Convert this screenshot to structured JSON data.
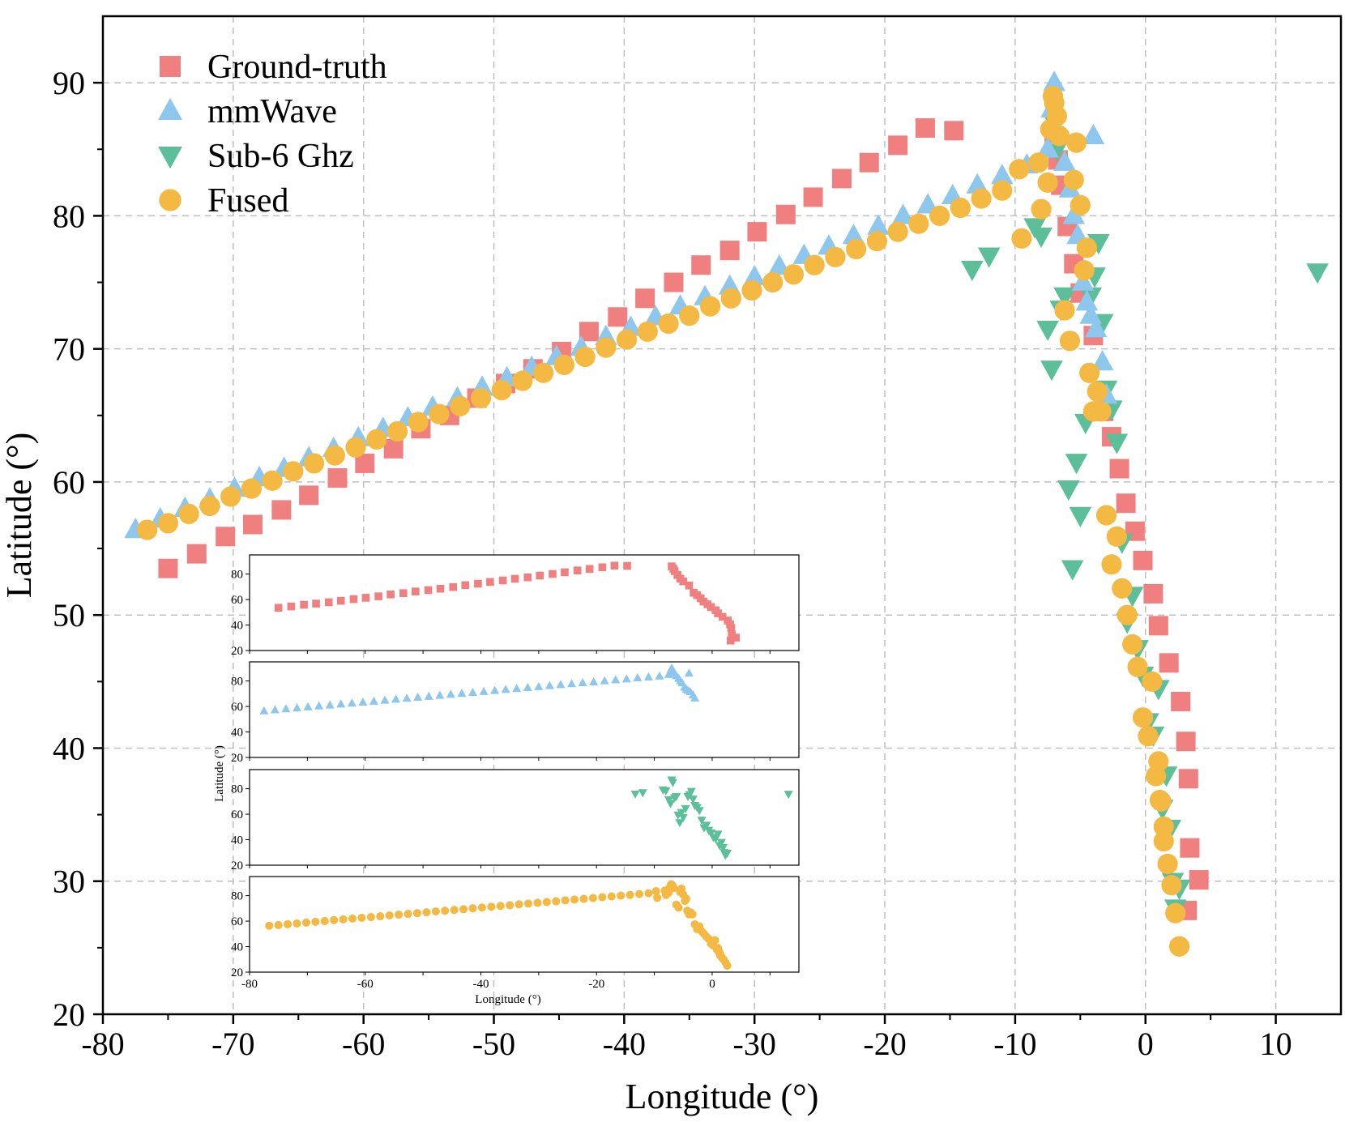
{
  "chart_data": {
    "type": "scatter",
    "title": "",
    "xlabel": "Longitude (°)",
    "ylabel": "Latitude (°)",
    "xlim": [
      -80,
      15
    ],
    "ylim": [
      20,
      95
    ],
    "xticks": [
      -80,
      -70,
      -60,
      -50,
      -40,
      -30,
      -20,
      -10,
      0,
      10
    ],
    "yticks": [
      20,
      30,
      40,
      50,
      60,
      70,
      80,
      90
    ],
    "grid": true,
    "legend_position": "top-left",
    "series": [
      {
        "name": "Ground-truth",
        "marker": "square",
        "color": "#f08080",
        "x": [
          -75.0,
          -72.8,
          -70.6,
          -68.5,
          -66.3,
          -64.2,
          -62.0,
          -59.9,
          -57.7,
          -55.6,
          -53.4,
          -51.3,
          -49.1,
          -47.0,
          -44.8,
          -42.7,
          -40.5,
          -38.4,
          -36.2,
          -34.1,
          -31.9,
          -29.8,
          -27.6,
          -25.5,
          -23.3,
          -21.2,
          -19.0,
          -16.9,
          -14.7,
          -7.0,
          -6.7,
          -6.5,
          -6.0,
          -5.5,
          -5.0,
          -4.0,
          -3.2,
          -2.6,
          -2.0,
          -1.5,
          -0.8,
          -0.2,
          0.6,
          1.0,
          1.8,
          2.7,
          3.1,
          3.3,
          3.4,
          4.1
        ],
        "y": [
          53.5,
          54.6,
          55.9,
          56.8,
          57.9,
          59.0,
          60.3,
          61.4,
          62.5,
          64.0,
          65.0,
          66.3,
          67.4,
          68.5,
          69.8,
          71.3,
          72.4,
          73.8,
          75.0,
          76.3,
          77.4,
          78.8,
          80.1,
          81.4,
          82.8,
          84.0,
          85.3,
          86.6,
          86.4,
          86.0,
          84.2,
          82.3,
          79.2,
          76.4,
          74.2,
          71.0,
          65.3,
          63.4,
          61.0,
          58.4,
          56.3,
          54.1,
          51.6,
          49.2,
          46.4,
          43.5,
          40.5,
          37.7,
          32.5,
          30.1
        ],
        "x_extra": [
          3.2
        ],
        "y_extra": [
          27.8
        ]
      },
      {
        "name": "mmWave",
        "marker": "triangle-up",
        "color": "#8ec7ee",
        "x": [
          -77.5,
          -75.6,
          -73.7,
          -71.8,
          -69.9,
          -68.0,
          -66.1,
          -64.2,
          -62.3,
          -60.4,
          -58.5,
          -56.6,
          -54.7,
          -52.8,
          -50.9,
          -49.0,
          -47.1,
          -45.2,
          -43.3,
          -41.4,
          -39.5,
          -37.6,
          -35.7,
          -33.8,
          -31.9,
          -30.0,
          -28.1,
          -26.2,
          -24.3,
          -22.4,
          -20.5,
          -18.6,
          -16.7,
          -14.8,
          -12.9,
          -11.0,
          -9.1,
          -7.5,
          -7.2,
          -7.0,
          -6.5,
          -6.2,
          -5.8,
          -5.5,
          -5.2,
          -4.8,
          -4.5,
          -4.2,
          -3.8,
          -3.3,
          -3.0
        ],
        "y": [
          56.4,
          57.2,
          58.0,
          58.7,
          59.5,
          60.3,
          61.0,
          61.8,
          62.5,
          63.3,
          64.0,
          64.8,
          65.6,
          66.3,
          67.1,
          67.8,
          68.6,
          69.4,
          70.1,
          70.9,
          71.6,
          72.4,
          73.2,
          73.9,
          74.7,
          75.4,
          76.2,
          77.0,
          77.7,
          78.5,
          79.2,
          80.0,
          80.8,
          81.5,
          82.3,
          83.0,
          83.8,
          85.0,
          88.0,
          90.0,
          86.0,
          84.0,
          82.0,
          80.0,
          78.5,
          75.0,
          73.5,
          72.5,
          71.5,
          69.0,
          66.5
        ],
        "x_extra": [
          -4.0
        ],
        "y_extra": [
          86.0
        ]
      },
      {
        "name": "Sub-6 Ghz",
        "marker": "triangle-down",
        "color": "#5dbf9a",
        "x": [
          -13.3,
          -12.0,
          -8.5,
          -8.0,
          -7.5,
          -7.2,
          -7.0,
          -6.8,
          -6.5,
          -6.2,
          -5.9,
          -5.6,
          -5.3,
          -5.0,
          -4.6,
          -4.2,
          -3.9,
          -3.6,
          -3.3,
          -3.0,
          -2.6,
          -2.2,
          -1.8,
          -1.4,
          -1.0,
          -0.6,
          -0.2,
          0.2,
          0.6,
          1.0,
          1.3,
          1.6,
          1.9,
          2.1,
          2.3,
          2.6,
          13.2
        ],
        "y": [
          76.0,
          77.0,
          79.2,
          78.5,
          71.5,
          68.5,
          87.0,
          85.0,
          73.0,
          74.0,
          59.5,
          53.5,
          61.5,
          57.5,
          64.5,
          74.0,
          75.5,
          78.0,
          72.0,
          67.0,
          65.5,
          63.0,
          55.5,
          49.5,
          51.5,
          47.5,
          45.5,
          42.0,
          41.0,
          44.5,
          35.5,
          38.0,
          34.0,
          30.0,
          28.0,
          29.5,
          75.8
        ]
      },
      {
        "name": "Fused",
        "marker": "circle",
        "color": "#f4b942",
        "x": [
          -76.6,
          -75.0,
          -73.4,
          -71.8,
          -70.2,
          -68.6,
          -67.0,
          -65.4,
          -63.8,
          -62.2,
          -60.6,
          -59.0,
          -57.4,
          -55.8,
          -54.2,
          -52.6,
          -51.0,
          -49.4,
          -47.8,
          -46.2,
          -44.6,
          -43.0,
          -41.4,
          -39.8,
          -38.2,
          -36.6,
          -35.0,
          -33.4,
          -31.8,
          -30.2,
          -28.6,
          -27.0,
          -25.4,
          -23.8,
          -22.2,
          -20.6,
          -19.0,
          -17.4,
          -15.8,
          -14.2,
          -12.6,
          -11.0,
          -9.5,
          -9.7,
          -8.2,
          -8.0,
          -7.5,
          -7.3,
          -7.1,
          -7.0,
          -6.8,
          -6.6,
          -6.2,
          -5.8,
          -5.5,
          -5.3,
          -5.0,
          -4.7,
          -4.5,
          -4.3,
          -4.0,
          -3.7,
          -3.4,
          -3.0,
          -2.6,
          -2.2,
          -1.8,
          -1.4,
          -1.0,
          -0.6,
          -0.2,
          0.2,
          0.5,
          0.8,
          1.1,
          1.4,
          1.7,
          2.0,
          2.3,
          2.6,
          1.4,
          1.2,
          1.0
        ],
        "y": [
          56.4,
          56.9,
          57.6,
          58.2,
          58.9,
          59.5,
          60.1,
          60.8,
          61.4,
          62.0,
          62.6,
          63.2,
          63.8,
          64.5,
          65.1,
          65.7,
          66.3,
          66.9,
          67.6,
          68.2,
          68.8,
          69.4,
          70.1,
          70.7,
          71.3,
          71.9,
          72.5,
          73.2,
          73.8,
          74.4,
          75.0,
          75.6,
          76.3,
          76.9,
          77.5,
          78.1,
          78.8,
          79.4,
          80.0,
          80.6,
          81.3,
          81.9,
          78.3,
          83.5,
          84.0,
          80.5,
          82.5,
          86.5,
          89.0,
          88.5,
          87.5,
          86.0,
          72.9,
          70.6,
          82.7,
          85.5,
          80.8,
          75.9,
          77.6,
          68.2,
          65.3,
          66.8,
          65.3,
          57.5,
          53.8,
          55.9,
          52.0,
          50.0,
          47.8,
          46.1,
          42.3,
          40.9,
          45.0,
          37.9,
          36.1,
          34.1,
          31.3,
          29.7,
          27.6,
          25.1,
          33.0,
          36.0,
          39.0
        ]
      }
    ],
    "inset": {
      "type": "scatter",
      "panels": [
        "Ground-truth",
        "mmWave",
        "Sub-6 Ghz",
        "Fused"
      ],
      "xlim": [
        -80,
        15
      ],
      "ylim": [
        20,
        95
      ],
      "xticks": [
        -80,
        -60,
        -40,
        -20,
        0
      ],
      "yticks": [
        20,
        40,
        60,
        80
      ],
      "xlabel": "Longitude (°)",
      "ylabel": "Latitude (°)"
    }
  }
}
